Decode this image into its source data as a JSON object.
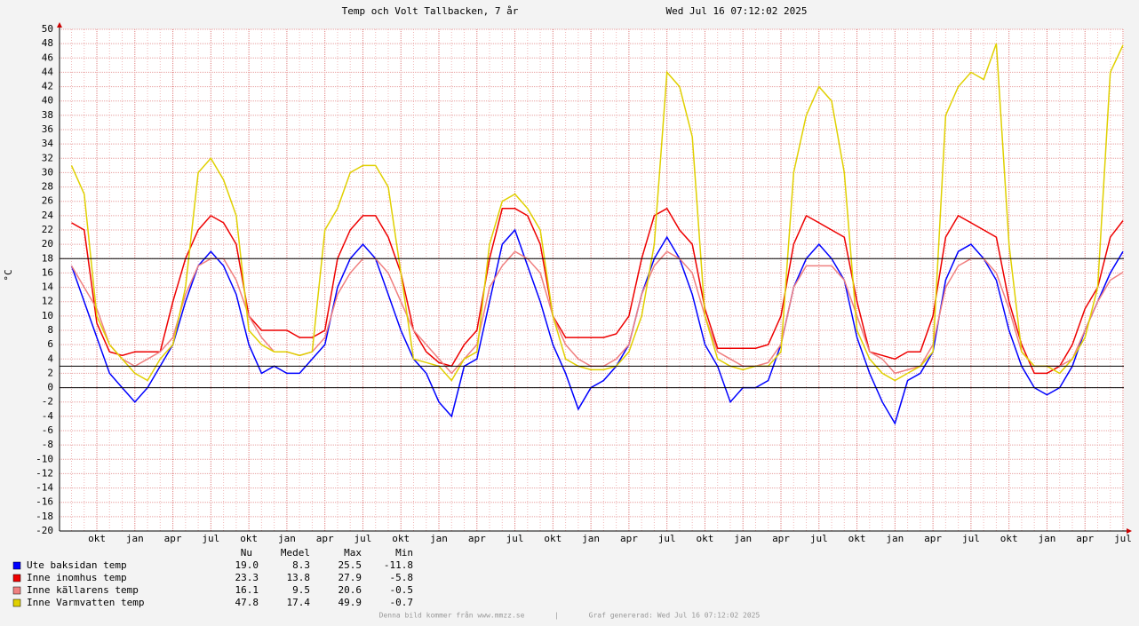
{
  "chart_data": {
    "type": "line",
    "title": "Temp och Volt Tallbacken, 7 år",
    "date": "Wed Jul 16 07:12:02 2025",
    "y_label": "°C",
    "footer": "Denna bild kommer från www.mmzz.se       |       Graf genererad: Wed Jul 16 07:12:02 2025",
    "categories": [
      null,
      null,
      "okt",
      null,
      null,
      "jan",
      null,
      null,
      "apr",
      null,
      null,
      "jul",
      null,
      null,
      "okt",
      null,
      null,
      "jan",
      null,
      null,
      "apr",
      null,
      null,
      "jul",
      null,
      null,
      "okt",
      null,
      null,
      "jan",
      null,
      null,
      "apr",
      null,
      null,
      "jul",
      null,
      null,
      "okt",
      null,
      null,
      "jan",
      null,
      null,
      "apr",
      null,
      null,
      "jul",
      null,
      null,
      "okt",
      null,
      null,
      "jan",
      null,
      null,
      "apr",
      null,
      null,
      "jul",
      null,
      null,
      "okt",
      null,
      null,
      "jan",
      null,
      null,
      "apr",
      null,
      null,
      "jul",
      null,
      null,
      "okt",
      null,
      null,
      "jan",
      null,
      null,
      "apr",
      null,
      null,
      "jul"
    ],
    "ylim": [
      -20,
      50
    ],
    "yticks": [
      -20,
      -18,
      -16,
      -14,
      -12,
      -10,
      -8,
      -6,
      -4,
      -2,
      0,
      2,
      4,
      6,
      8,
      10,
      12,
      14,
      16,
      18,
      20,
      22,
      24,
      26,
      28,
      30,
      32,
      34,
      36,
      38,
      40,
      42,
      44,
      46,
      48,
      50
    ],
    "grid": true,
    "hlines": [
      0,
      3,
      18
    ],
    "hline_color": "#000000",
    "stats_headers": [
      "Nu",
      "Medel",
      "Max",
      "Min"
    ],
    "series": [
      {
        "name": "Ute baksidan temp",
        "color": "#0000ff",
        "stats": [
          "19.0",
          "8.3",
          "25.5",
          "-11.8"
        ],
        "values": [
          17,
          12,
          7,
          2,
          0,
          -2,
          0,
          3,
          6,
          12,
          17,
          19,
          17,
          13,
          6,
          2,
          3,
          2,
          2,
          4,
          6,
          14,
          18,
          20,
          18,
          13,
          8,
          4,
          2,
          -2,
          -4,
          3,
          4,
          12,
          20,
          22,
          17,
          12,
          6,
          2,
          -3,
          0,
          1,
          3,
          6,
          13,
          18,
          21,
          18,
          13,
          6,
          3,
          -2,
          0,
          0,
          1,
          6,
          14,
          18,
          20,
          18,
          15,
          7,
          2,
          -2,
          -5,
          1,
          2,
          5,
          15,
          19,
          20,
          18,
          15,
          8,
          3,
          0,
          -1,
          0,
          3,
          8,
          12,
          16,
          19
        ]
      },
      {
        "name": "Inne inomhus temp",
        "color": "#ee0000",
        "stats": [
          "23.3",
          "13.8",
          "27.9",
          "-5.8"
        ],
        "values": [
          23,
          22,
          9,
          5,
          4.5,
          5,
          5,
          5,
          12,
          18,
          22,
          24,
          23,
          20,
          10,
          8,
          8,
          8,
          7,
          7,
          8,
          18,
          22,
          24,
          24,
          21,
          16,
          8,
          5,
          3.5,
          3,
          6,
          8,
          18,
          25,
          25,
          24,
          20,
          10,
          7,
          7,
          7,
          7,
          7.5,
          10,
          18,
          24,
          25,
          22,
          20,
          11,
          5.5,
          5.5,
          5.5,
          5.5,
          6,
          10,
          20,
          24,
          23,
          22,
          21,
          12,
          5,
          4.5,
          4,
          5,
          5,
          10,
          21,
          24,
          23,
          22,
          21,
          12,
          6,
          2,
          2,
          3,
          6,
          11,
          14,
          21,
          23.3
        ]
      },
      {
        "name": "Inne källarens temp",
        "color": "#f08080",
        "stats": [
          "16.1",
          "9.5",
          "20.6",
          "-0.5"
        ],
        "values": [
          17,
          14,
          11,
          6,
          4,
          3,
          4,
          5,
          7,
          13,
          17,
          18,
          18,
          15,
          10,
          7,
          5,
          5,
          4.5,
          5,
          7,
          13,
          16,
          18,
          18,
          16,
          12,
          8,
          6,
          4,
          2,
          4,
          6,
          14,
          17,
          19,
          18,
          16,
          10,
          6,
          4,
          3,
          3,
          4,
          6,
          13,
          17,
          19,
          18,
          16,
          10,
          5,
          4,
          3,
          3,
          3.5,
          6,
          14,
          17,
          17,
          17,
          15,
          10,
          5,
          4,
          2,
          2.5,
          3,
          6,
          14,
          17,
          18,
          18,
          16,
          11,
          5,
          3,
          3,
          3,
          4,
          8,
          12,
          15,
          16.1
        ]
      },
      {
        "name": "Inne Varmvatten temp",
        "color": "#e0d000",
        "stats": [
          "47.8",
          "17.4",
          "49.9",
          "-0.7"
        ],
        "values": [
          31,
          27,
          10,
          6,
          4,
          2,
          1,
          4,
          6,
          14,
          30,
          32,
          29,
          24,
          8,
          6,
          5,
          5,
          4.5,
          5,
          22,
          25,
          30,
          31,
          31,
          28,
          16,
          4,
          3.5,
          3,
          1,
          4,
          5,
          20,
          26,
          27,
          25,
          22,
          10,
          4,
          3,
          2.5,
          2.5,
          3,
          5,
          10,
          20,
          44,
          42,
          35,
          10,
          4,
          3,
          2.5,
          3,
          3,
          5,
          30,
          38,
          42,
          40,
          30,
          8,
          4,
          2,
          1,
          2,
          3,
          5,
          38,
          42,
          44,
          43,
          48,
          20,
          5,
          3,
          3,
          2,
          4,
          7,
          14,
          44,
          47.8
        ]
      }
    ]
  }
}
